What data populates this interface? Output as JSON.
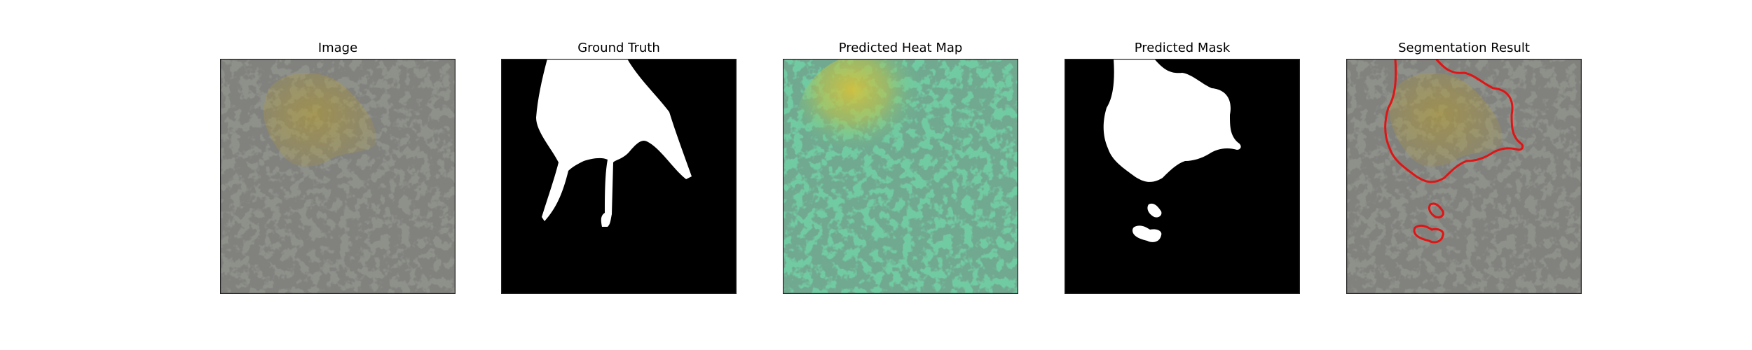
{
  "figure": {
    "panels": [
      {
        "title": "Image"
      },
      {
        "title": "Ground Truth"
      },
      {
        "title": "Predicted Heat Map"
      },
      {
        "title": "Predicted Mask"
      },
      {
        "title": "Segmentation Result"
      }
    ]
  },
  "colors": {
    "background": "#ffffff",
    "granite_base": "#8e918a",
    "granite_dark_spots": "#3b3b38",
    "object_tint": "#9a8a3e",
    "mask_foreground": "#ffffff",
    "mask_background": "#000000",
    "heatmap_low": "#5fc49a",
    "heatmap_high": "#d8c23a",
    "contour": "#e01414"
  }
}
